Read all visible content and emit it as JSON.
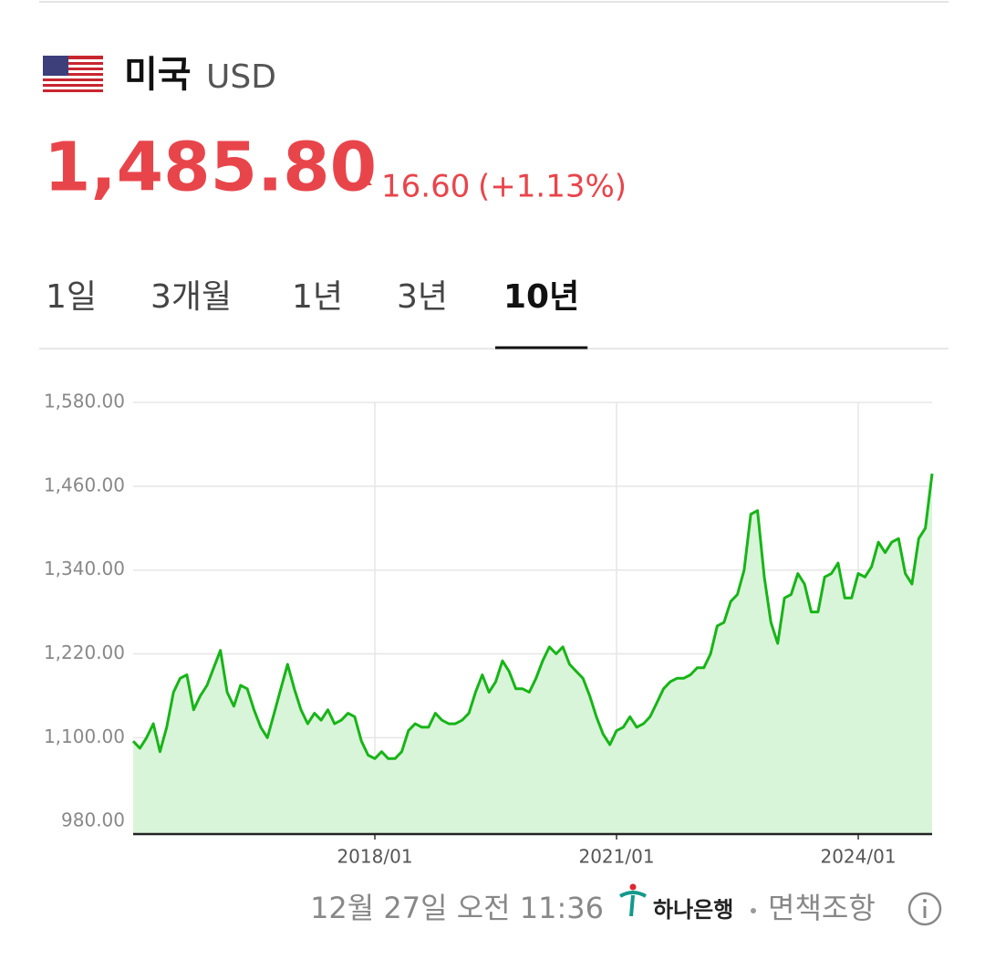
{
  "header": {
    "country": "미국",
    "currency": "USD"
  },
  "quote": {
    "price": "1,485.80",
    "change": "16.60",
    "change_percent": "(+1.13%)"
  },
  "tabs": {
    "items": [
      "1일",
      "3개월",
      "1년",
      "3년",
      "10년"
    ],
    "active": 4
  },
  "footer": {
    "timestamp": "12월 27일 오전 11:36",
    "bank": "하나은행",
    "disclaimer": "면책조항"
  },
  "chart_data": {
    "type": "line",
    "x": [
      "2015/01",
      "2015/02",
      "2015/03",
      "2015/04",
      "2015/05",
      "2015/06",
      "2015/07",
      "2015/08",
      "2015/09",
      "2015/10",
      "2015/11",
      "2015/12",
      "2016/01",
      "2016/02",
      "2016/03",
      "2016/04",
      "2016/05",
      "2016/06",
      "2016/07",
      "2016/08",
      "2016/09",
      "2016/10",
      "2016/11",
      "2016/12",
      "2017/01",
      "2017/02",
      "2017/03",
      "2017/04",
      "2017/05",
      "2017/06",
      "2017/07",
      "2017/08",
      "2017/09",
      "2017/10",
      "2017/11",
      "2017/12",
      "2018/01",
      "2018/02",
      "2018/03",
      "2018/04",
      "2018/05",
      "2018/06",
      "2018/07",
      "2018/08",
      "2018/09",
      "2018/10",
      "2018/11",
      "2018/12",
      "2019/01",
      "2019/02",
      "2019/03",
      "2019/04",
      "2019/05",
      "2019/06",
      "2019/07",
      "2019/08",
      "2019/09",
      "2019/10",
      "2019/11",
      "2019/12",
      "2020/01",
      "2020/02",
      "2020/03",
      "2020/04",
      "2020/05",
      "2020/06",
      "2020/07",
      "2020/08",
      "2020/09",
      "2020/10",
      "2020/11",
      "2020/12",
      "2021/01",
      "2021/02",
      "2021/03",
      "2021/04",
      "2021/05",
      "2021/06",
      "2021/07",
      "2021/08",
      "2021/09",
      "2021/10",
      "2021/11",
      "2021/12",
      "2022/01",
      "2022/02",
      "2022/03",
      "2022/04",
      "2022/05",
      "2022/06",
      "2022/07",
      "2022/08",
      "2022/09",
      "2022/10",
      "2022/11",
      "2022/12",
      "2023/01",
      "2023/02",
      "2023/03",
      "2023/04",
      "2023/05",
      "2023/06",
      "2023/07",
      "2023/08",
      "2023/09",
      "2023/10",
      "2023/11",
      "2023/12",
      "2024/01",
      "2024/02",
      "2024/03",
      "2024/04",
      "2024/05",
      "2024/06",
      "2024/07",
      "2024/08",
      "2024/09",
      "2024/10",
      "2024/11",
      "2024/12"
    ],
    "series": [
      {
        "color": "#17b517",
        "fill": "#d9f5d9",
        "values": [
          1095,
          1085,
          1100,
          1120,
          1080,
          1115,
          1165,
          1185,
          1190,
          1140,
          1160,
          1175,
          1200,
          1225,
          1165,
          1145,
          1175,
          1170,
          1140,
          1115,
          1100,
          1135,
          1170,
          1205,
          1170,
          1140,
          1120,
          1135,
          1125,
          1140,
          1120,
          1125,
          1135,
          1130,
          1095,
          1075,
          1070,
          1080,
          1070,
          1070,
          1080,
          1110,
          1120,
          1115,
          1115,
          1135,
          1125,
          1120,
          1120,
          1125,
          1135,
          1165,
          1190,
          1165,
          1180,
          1210,
          1195,
          1170,
          1170,
          1165,
          1185,
          1210,
          1230,
          1220,
          1230,
          1205,
          1195,
          1185,
          1160,
          1130,
          1105,
          1090,
          1110,
          1115,
          1130,
          1115,
          1120,
          1130,
          1150,
          1170,
          1180,
          1185,
          1185,
          1190,
          1200,
          1200,
          1220,
          1260,
          1265,
          1295,
          1305,
          1340,
          1420,
          1425,
          1330,
          1265,
          1235,
          1300,
          1305,
          1335,
          1320,
          1280,
          1280,
          1330,
          1335,
          1350,
          1300,
          1300,
          1335,
          1330,
          1345,
          1380,
          1365,
          1380,
          1385,
          1335,
          1320,
          1385,
          1400,
          1478
        ]
      }
    ],
    "ylim": [
      962,
      1580
    ],
    "yticks": [
      {
        "value": 980,
        "label": "980.00"
      },
      {
        "value": 1100,
        "label": "1,100.00"
      },
      {
        "value": 1220,
        "label": "1,220.00"
      },
      {
        "value": 1340,
        "label": "1,340.00"
      },
      {
        "value": 1460,
        "label": "1,460.00"
      },
      {
        "value": 1580,
        "label": "1,580.00"
      }
    ],
    "xticks": [
      "2018/01",
      "2021/01",
      "2024/01"
    ],
    "grid": true
  }
}
